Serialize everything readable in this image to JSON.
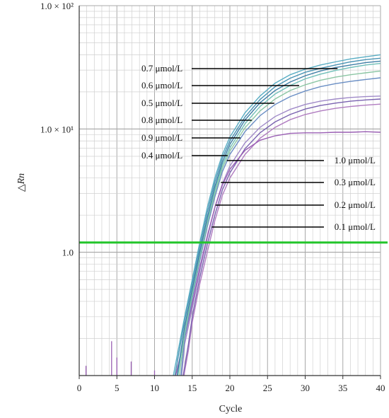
{
  "chart_data": {
    "type": "line",
    "xlabel": "Cycle",
    "ylabel": "△Rn",
    "xlim": [
      0,
      40
    ],
    "ylim": [
      0.1,
      100
    ],
    "yscale": "log",
    "grid": true,
    "x_ticks": [
      "0",
      "5",
      "10",
      "15",
      "20",
      "25",
      "30",
      "35",
      "40"
    ],
    "y_ticks": [
      {
        "value": 100,
        "label": "1.0 × 10²"
      },
      {
        "value": 10,
        "label": "1.0 × 10¹"
      },
      {
        "value": 1,
        "label": "1.0"
      }
    ],
    "threshold": {
      "value": 1.2,
      "color": "#22c52a"
    },
    "series": [
      {
        "name": "0.7 μmol/L",
        "color": "#5aaec4",
        "label_x": 34.3,
        "x": [
          12.5,
          14,
          15,
          16,
          17,
          18,
          19,
          20,
          22,
          24,
          26,
          28,
          30,
          32,
          34,
          36,
          38,
          40
        ],
        "y": [
          0.1,
          0.3,
          0.6,
          1.2,
          2.3,
          4.0,
          6.2,
          8.6,
          13.5,
          18.5,
          23.5,
          27.5,
          30.5,
          33,
          35,
          37,
          38.5,
          40
        ]
      },
      {
        "name": "0.6 μmol/L",
        "color": "#4a94b4",
        "label_x": 29.2,
        "x": [
          12.7,
          14,
          15,
          16,
          17,
          18,
          19,
          20,
          22,
          24,
          26,
          28,
          30,
          32,
          34,
          36,
          38,
          40
        ],
        "y": [
          0.1,
          0.28,
          0.55,
          1.1,
          2.1,
          3.7,
          5.8,
          8.0,
          12.5,
          17.3,
          22,
          25.8,
          28.8,
          31,
          33,
          35,
          36.5,
          37.5
        ]
      },
      {
        "name": "0.5 μmol/L",
        "color": "#3f7fa6",
        "label_x": 25.9,
        "x": [
          13,
          14,
          15,
          16,
          17,
          18,
          19,
          20,
          22,
          24,
          26,
          28,
          30,
          32,
          34,
          36,
          38,
          40
        ],
        "y": [
          0.1,
          0.25,
          0.5,
          1.0,
          1.9,
          3.4,
          5.4,
          7.5,
          11.8,
          16.3,
          20.5,
          24,
          27,
          29.5,
          31.5,
          33,
          34.5,
          35.5
        ]
      },
      {
        "name": "0.8 μmol/L",
        "color": "#6fbfb8",
        "label_x": 22.9,
        "x": [
          13.1,
          14,
          15,
          16,
          17,
          18,
          19,
          20,
          22,
          24,
          26,
          28,
          30,
          32,
          34,
          36,
          38,
          40
        ],
        "y": [
          0.1,
          0.24,
          0.48,
          0.95,
          1.8,
          3.2,
          5.1,
          7.0,
          11,
          15.2,
          19.2,
          22.5,
          25.5,
          27.8,
          29.8,
          31.5,
          33,
          34
        ]
      },
      {
        "name": "0.9 μmol/L",
        "color": "#8cc6a4",
        "label_x": 21.4,
        "x": [
          13.3,
          14,
          15,
          16,
          17,
          18,
          19,
          20,
          22,
          24,
          26,
          28,
          30,
          32,
          34,
          36,
          38,
          40
        ],
        "y": [
          0.1,
          0.22,
          0.45,
          0.9,
          1.7,
          3.0,
          4.8,
          6.6,
          10.2,
          14,
          17.5,
          20.5,
          22.8,
          24.8,
          26.3,
          27.5,
          28.5,
          29.5
        ]
      },
      {
        "name": "0.4 μmol/L",
        "color": "#6a8ec4",
        "label_x": 19.7,
        "x": [
          13.5,
          14,
          15,
          16,
          17,
          18,
          19,
          20,
          22,
          24,
          26,
          28,
          30,
          32,
          34,
          36,
          38,
          40
        ],
        "y": [
          0.1,
          0.2,
          0.42,
          0.85,
          1.6,
          2.8,
          4.5,
          6.2,
          9.5,
          12.8,
          15.8,
          18.3,
          20.3,
          22,
          23.3,
          24.3,
          25.2,
          26
        ]
      },
      {
        "name": "1.0 μmol/L",
        "color": "#9a5fb4",
        "label_x": 19.6,
        "x": [
          12.8,
          14,
          15,
          16,
          17,
          18,
          19,
          20,
          22,
          24,
          26,
          28,
          30,
          32,
          34,
          36,
          38,
          40
        ],
        "y": [
          0.1,
          0.2,
          0.38,
          0.75,
          1.35,
          2.3,
          3.5,
          4.7,
          6.7,
          8.1,
          8.8,
          9.2,
          9.3,
          9.3,
          9.4,
          9.4,
          9.5,
          9.4
        ]
      },
      {
        "name": "0.3 μmol/L",
        "color": "#a08ac8",
        "label_x": 18.8,
        "x": [
          13.6,
          14,
          15,
          16,
          17,
          18,
          19,
          20,
          22,
          24,
          26,
          28,
          30,
          32,
          34,
          36,
          38,
          40
        ],
        "y": [
          0.1,
          0.18,
          0.35,
          0.7,
          1.3,
          2.3,
          3.6,
          5.0,
          7.7,
          10.3,
          12.6,
          14.4,
          15.8,
          16.8,
          17.5,
          18,
          18.3,
          18.5
        ]
      },
      {
        "name": "0.2 μmol/L",
        "color": "#7a62b0",
        "label_x": 18.1,
        "x": [
          13.8,
          14.5,
          15,
          16,
          17,
          18,
          19,
          20,
          22,
          24,
          26,
          28,
          30,
          32,
          34,
          36,
          38,
          40
        ],
        "y": [
          0.1,
          0.18,
          0.3,
          0.62,
          1.15,
          2.0,
          3.2,
          4.4,
          6.9,
          9.3,
          11.4,
          13.1,
          14.5,
          15.5,
          16.2,
          16.8,
          17.2,
          17.5
        ]
      },
      {
        "name": "0.1 μmol/L",
        "color": "#b07cc0",
        "label_x": 17.6,
        "x": [
          13.9,
          14.5,
          15,
          16,
          17,
          18,
          19,
          20,
          22,
          24,
          26,
          28,
          30,
          32,
          34,
          36,
          38,
          40
        ],
        "y": [
          0.1,
          0.16,
          0.27,
          0.55,
          1.0,
          1.8,
          2.9,
          4.0,
          6.2,
          8.4,
          10.3,
          11.9,
          13.1,
          14,
          14.7,
          15.2,
          15.6,
          15.9
        ]
      }
    ],
    "label_order": [
      {
        "name": "0.7 μmol/L",
        "side": "left"
      },
      {
        "name": "0.6 μmol/L",
        "side": "left"
      },
      {
        "name": "0.5 μmol/L",
        "side": "left"
      },
      {
        "name": "0.8 μmol/L",
        "side": "left"
      },
      {
        "name": "0.9 μmol/L",
        "side": "left"
      },
      {
        "name": "0.4 μmol/L",
        "side": "left"
      },
      {
        "name": "1.0 μmol/L",
        "side": "right"
      },
      {
        "name": "0.3 μmol/L",
        "side": "right"
      },
      {
        "name": "0.2 μmol/L",
        "side": "right"
      },
      {
        "name": "0.1 μmol/L",
        "side": "right"
      }
    ],
    "spikes": [
      {
        "x": 0.9,
        "y": 0.12
      },
      {
        "x": 4.3,
        "y": 0.19
      },
      {
        "x": 5.0,
        "y": 0.14
      },
      {
        "x": 6.9,
        "y": 0.13
      },
      {
        "x": 10.0,
        "y": 0.11
      }
    ]
  }
}
